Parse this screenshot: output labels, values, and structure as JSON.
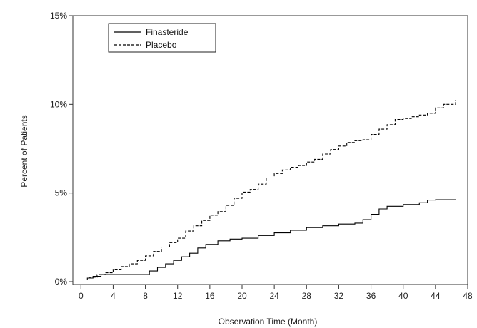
{
  "chart_data": {
    "type": "line",
    "title": "",
    "xlabel": "Observation Time (Month)",
    "ylabel": "Percent of Patients",
    "xlim": [
      -1,
      48
    ],
    "ylim": [
      0,
      15
    ],
    "x_ticks": [
      0,
      4,
      8,
      12,
      16,
      20,
      24,
      28,
      32,
      36,
      40,
      44,
      48
    ],
    "y_ticks": [
      {
        "value": 0,
        "label": "0%"
      },
      {
        "value": 5,
        "label": "5%"
      },
      {
        "value": 10,
        "label": "10%"
      },
      {
        "value": 15,
        "label": "15%"
      }
    ],
    "grid": false,
    "legend_position": "top-left",
    "series": [
      {
        "name": "Finasteride",
        "style": "solid",
        "color": "#000000",
        "points": [
          [
            0.2,
            0.1
          ],
          [
            0.8,
            0.2
          ],
          [
            1.5,
            0.3
          ],
          [
            2.5,
            0.4
          ],
          [
            4,
            0.4
          ],
          [
            6,
            0.4
          ],
          [
            7.8,
            0.4
          ],
          [
            8.5,
            0.6
          ],
          [
            9.5,
            0.8
          ],
          [
            10.5,
            1.0
          ],
          [
            11.5,
            1.2
          ],
          [
            12.5,
            1.4
          ],
          [
            13.5,
            1.6
          ],
          [
            14.5,
            1.9
          ],
          [
            15.5,
            2.1
          ],
          [
            17,
            2.3
          ],
          [
            18.5,
            2.4
          ],
          [
            20,
            2.45
          ],
          [
            22,
            2.6
          ],
          [
            24,
            2.75
          ],
          [
            26,
            2.9
          ],
          [
            28,
            3.05
          ],
          [
            30,
            3.15
          ],
          [
            32,
            3.25
          ],
          [
            34,
            3.3
          ],
          [
            35,
            3.5
          ],
          [
            36,
            3.8
          ],
          [
            37,
            4.1
          ],
          [
            38,
            4.25
          ],
          [
            40,
            4.35
          ],
          [
            42,
            4.45
          ],
          [
            43,
            4.6
          ],
          [
            44,
            4.62
          ],
          [
            46.5,
            4.62
          ]
        ]
      },
      {
        "name": "Placebo",
        "style": "dashed",
        "color": "#000000",
        "points": [
          [
            0.2,
            0.1
          ],
          [
            1,
            0.25
          ],
          [
            2,
            0.4
          ],
          [
            3,
            0.5
          ],
          [
            4,
            0.7
          ],
          [
            5,
            0.85
          ],
          [
            6,
            1.0
          ],
          [
            7,
            1.2
          ],
          [
            8,
            1.45
          ],
          [
            9,
            1.7
          ],
          [
            10,
            1.95
          ],
          [
            11,
            2.2
          ],
          [
            12,
            2.45
          ],
          [
            13,
            2.85
          ],
          [
            14,
            3.15
          ],
          [
            15,
            3.45
          ],
          [
            16,
            3.75
          ],
          [
            17,
            3.95
          ],
          [
            18,
            4.3
          ],
          [
            19,
            4.7
          ],
          [
            20,
            5.05
          ],
          [
            21,
            5.2
          ],
          [
            22,
            5.5
          ],
          [
            23,
            5.85
          ],
          [
            24,
            6.1
          ],
          [
            25,
            6.3
          ],
          [
            26,
            6.45
          ],
          [
            27,
            6.55
          ],
          [
            28,
            6.75
          ],
          [
            29,
            6.9
          ],
          [
            30,
            7.2
          ],
          [
            31,
            7.45
          ],
          [
            32,
            7.65
          ],
          [
            33,
            7.85
          ],
          [
            34,
            7.95
          ],
          [
            35,
            8.0
          ],
          [
            36,
            8.3
          ],
          [
            37,
            8.6
          ],
          [
            38,
            8.85
          ],
          [
            39,
            9.15
          ],
          [
            40,
            9.2
          ],
          [
            41,
            9.3
          ],
          [
            42,
            9.4
          ],
          [
            43,
            9.5
          ],
          [
            44,
            9.8
          ],
          [
            45,
            10.0
          ],
          [
            46,
            10.0
          ],
          [
            46.5,
            10.25
          ]
        ]
      }
    ]
  }
}
